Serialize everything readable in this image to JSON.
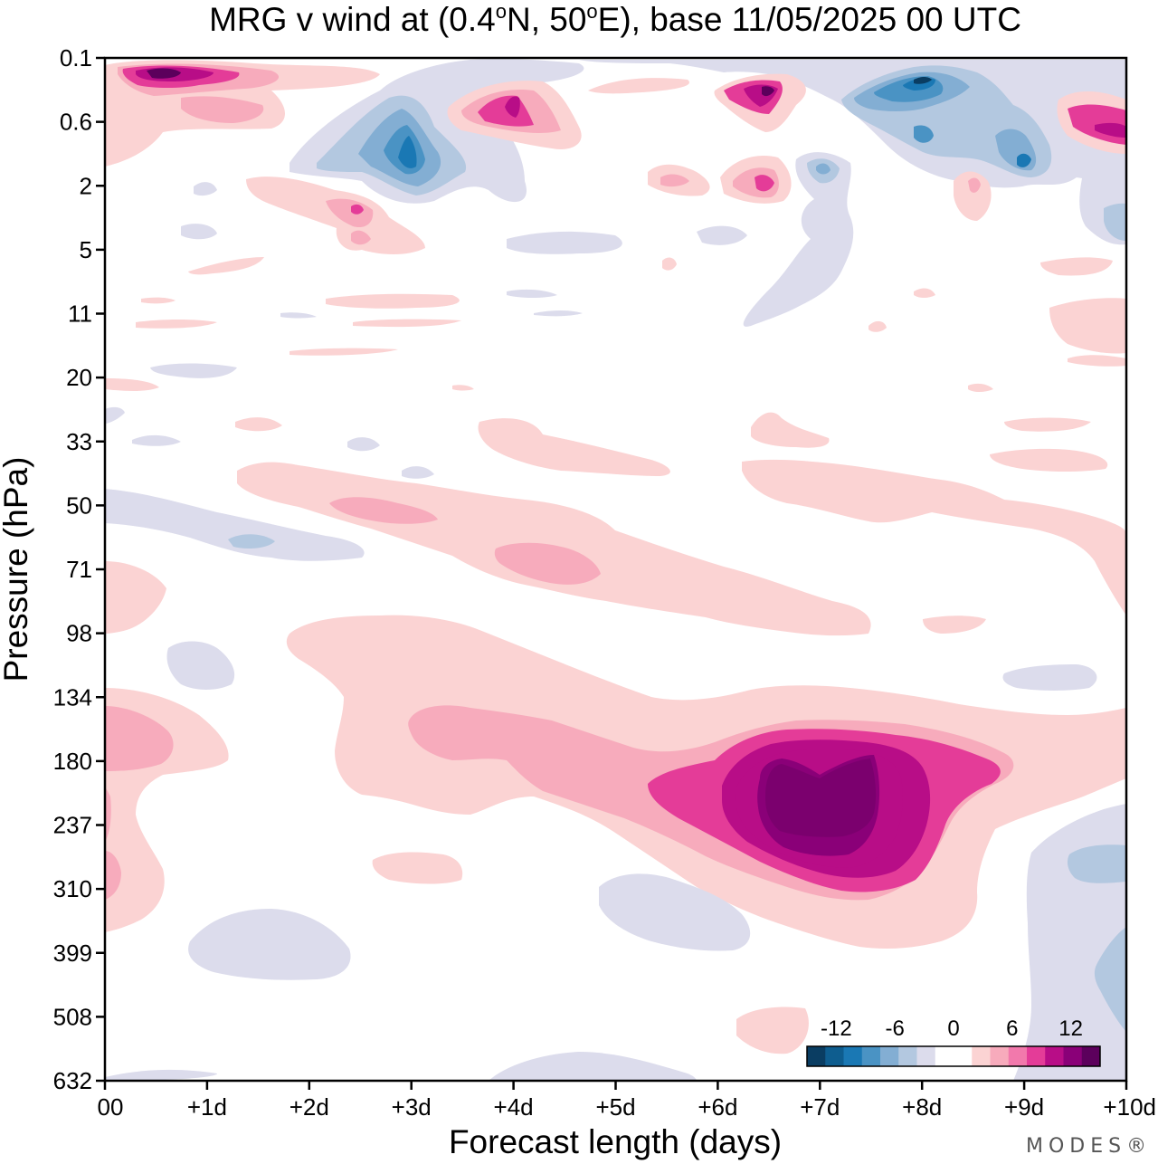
{
  "chart_data": {
    "type": "heatmap",
    "title": "MRG v wind at (0.4°N, 50°E),  base 11/05/2025  00 UTC",
    "title_parts": {
      "prefix": "MRG v wind at (0.4",
      "lat_unit": "o",
      "lat_hemi": "N, 50",
      "lon_unit": "o",
      "suffix": "E),  base 11/05/2025  00 UTC"
    },
    "xlabel": "Forecast length (days)",
    "ylabel": "Pressure (hPa)",
    "x_ticks": [
      "00",
      "+1d",
      "+2d",
      "+3d",
      "+4d",
      "+5d",
      "+6d",
      "+7d",
      "+8d",
      "+9d",
      "+10d"
    ],
    "xlim": [
      0,
      10
    ],
    "y_ticks": [
      "0.1",
      "0.6",
      "2",
      "5",
      "11",
      "20",
      "33",
      "50",
      "71",
      "98",
      "134",
      "180",
      "237",
      "310",
      "399",
      "508",
      "632"
    ],
    "y_scale": "pressure levels, top 0.1 hPa to bottom 632 hPa",
    "grid": false,
    "colorbar": {
      "placement": "bottom-right inside plot",
      "tick_labels": [
        "-12",
        "-6",
        "0",
        "6",
        "12"
      ],
      "tick_values": [
        -12,
        -6,
        0,
        6,
        12
      ],
      "range": [
        -15,
        15
      ],
      "step": 1.875,
      "colors": [
        "#0a3d62",
        "#0e5d8f",
        "#1a78b4",
        "#4a93c4",
        "#83aed3",
        "#b3c8e0",
        "#dcdcec",
        "#ffffff",
        "#ffffff",
        "#fbd3d3",
        "#f7abbc",
        "#f279ac",
        "#e43c98",
        "#b80d87",
        "#8a0078",
        "#5c005c"
      ]
    },
    "features": [
      {
        "name": "upper tropospheric positive maximum",
        "x_days": [
          6.2,
          8.0
        ],
        "y_levels": [
          "180",
          "310"
        ],
        "peak": 14
      },
      {
        "name": "near-surface negative",
        "x_days": [
          8.7,
          10
        ],
        "y_levels": [
          "237",
          "632"
        ],
        "peak": -5
      },
      {
        "name": "stratopause positive",
        "x_days": [
          0.3,
          1.2
        ],
        "y_levels": [
          "0.1",
          "0.6"
        ],
        "peak": 14
      },
      {
        "name": "stratopause negative",
        "x_days": [
          7.3,
          9.2
        ],
        "y_levels": [
          "0.1",
          "2"
        ],
        "peak": -13
      }
    ]
  },
  "watermark": "MODES®"
}
